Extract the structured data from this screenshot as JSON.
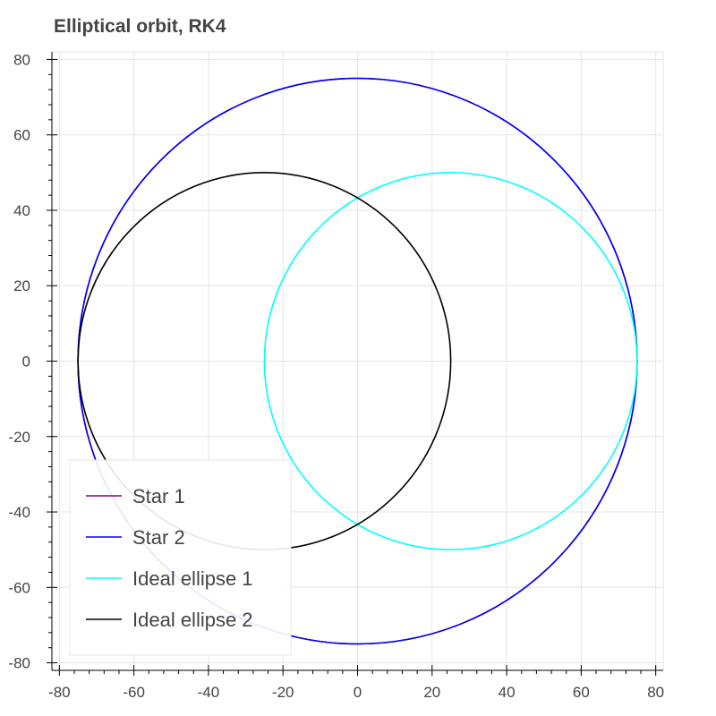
{
  "chart_data": {
    "type": "line",
    "title": "Elliptical orbit, RK4",
    "xlabel": "",
    "ylabel": "",
    "xlim": [
      -82,
      82
    ],
    "ylim": [
      -82,
      82
    ],
    "x_ticks": [
      -80,
      -60,
      -40,
      -20,
      0,
      20,
      40,
      60,
      80
    ],
    "y_ticks": [
      -80,
      -60,
      -40,
      -20,
      0,
      20,
      40,
      60,
      80
    ],
    "grid": true,
    "legend_position": "bottom-left",
    "series": [
      {
        "name": "Star 1",
        "color": "#800080",
        "shape": "ellipse",
        "center": [
          0,
          0
        ],
        "rx": 75,
        "ry": 75
      },
      {
        "name": "Star 2",
        "color": "#0000ff",
        "shape": "ellipse",
        "center": [
          0,
          0
        ],
        "rx": 75,
        "ry": 75
      },
      {
        "name": "Ideal ellipse 1",
        "color": "#00ffff",
        "shape": "ellipse",
        "center": [
          25,
          0
        ],
        "rx": 50,
        "ry": 50
      },
      {
        "name": "Ideal ellipse 2",
        "color": "#000000",
        "shape": "ellipse",
        "center": [
          -25,
          0
        ],
        "rx": 50,
        "ry": 50
      }
    ]
  }
}
